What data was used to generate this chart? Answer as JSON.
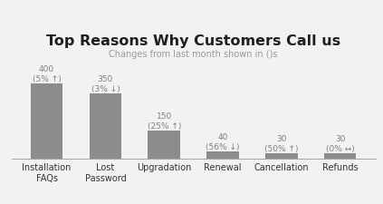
{
  "title": "Top Reasons Why Customers Call us",
  "subtitle": "Changes from last month shown in ()s",
  "categories": [
    "Installation\nFAQs",
    "Lost\nPassword",
    "Upgradation",
    "Renewal",
    "Cancellation",
    "Refunds"
  ],
  "values": [
    400,
    350,
    150,
    40,
    30,
    30
  ],
  "bar_color": "#8c8c8c",
  "bar_labels": [
    "400\n(5% ↑)",
    "350\n(3% ↓)",
    "150\n(25% ↑)",
    "40\n(56% ↓)",
    "30\n(50% ↑)",
    "30\n(0% ↔)"
  ],
  "label_color": "#808080",
  "title_color": "#1f1f1f",
  "subtitle_color": "#999999",
  "background_color": "#f2f2f2",
  "ylim": [
    0,
    500
  ],
  "title_fontsize": 11.5,
  "subtitle_fontsize": 7,
  "label_fontsize": 6.5,
  "tick_fontsize": 7
}
